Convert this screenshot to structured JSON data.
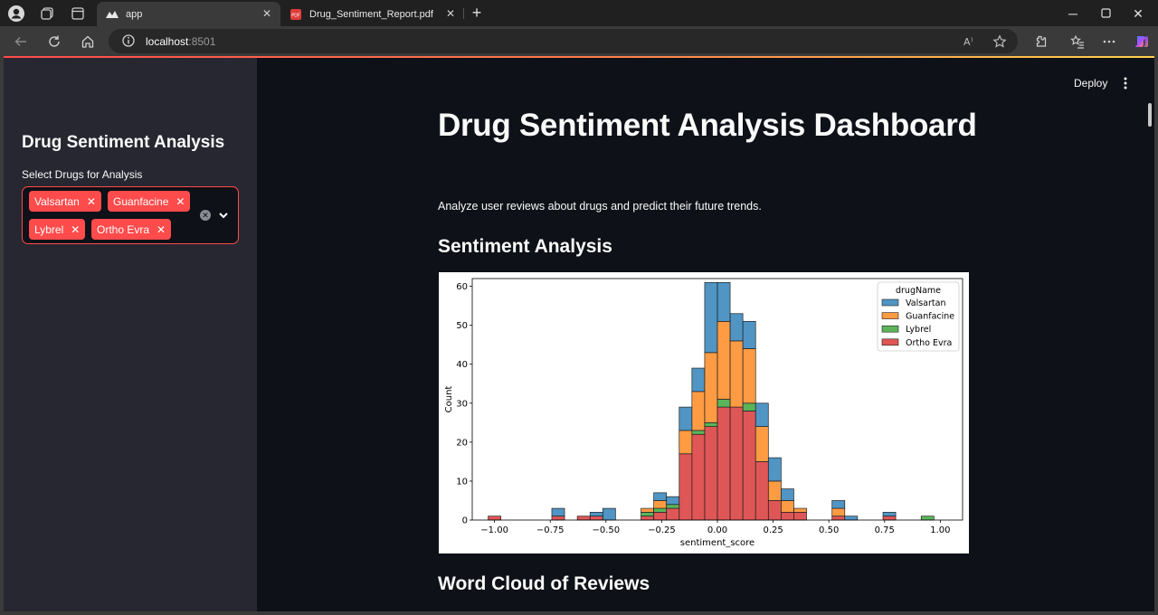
{
  "browser": {
    "tabs": [
      {
        "title": "app",
        "active": true
      },
      {
        "title": "Drug_Sentiment_Report.pdf",
        "active": false
      }
    ],
    "url_host": "localhost",
    "url_port": ":8501"
  },
  "header": {
    "deploy_label": "Deploy"
  },
  "sidebar": {
    "title": "Drug Sentiment Analysis",
    "select_label": "Select Drugs for Analysis",
    "selected": [
      "Valsartan",
      "Guanfacine",
      "Lybrel",
      "Ortho Evra"
    ]
  },
  "main": {
    "title": "Drug Sentiment Analysis Dashboard",
    "description": "Analyze user reviews about drugs and predict their future trends.",
    "section_sentiment": "Sentiment Analysis",
    "section_wordcloud": "Word Cloud of Reviews"
  },
  "colors": {
    "accent": "#ff4b4b",
    "Valsartan": "#1f77b4",
    "Guanfacine": "#ff7f0e",
    "Lybrel": "#2ca02c",
    "Ortho Evra": "#d62728"
  },
  "chart_data": {
    "type": "bar",
    "stacked": true,
    "xlabel": "sentiment_score",
    "ylabel": "Count",
    "legend_title": "drugName",
    "legend_position": "top-right",
    "xlim": [
      -1.1,
      1.1
    ],
    "ylim": [
      0,
      62
    ],
    "xticks": [
      "-1.00",
      "-0.75",
      "-0.50",
      "-0.25",
      "0.00",
      "0.25",
      "0.50",
      "0.75",
      "1.00"
    ],
    "yticks": [
      0,
      10,
      20,
      30,
      40,
      50,
      60
    ],
    "bin_width": 0.0571,
    "bin_starts": [
      -1.0286,
      -0.9714,
      -0.9143,
      -0.8571,
      -0.8,
      -0.7429,
      -0.6857,
      -0.6286,
      -0.5714,
      -0.5143,
      -0.4571,
      -0.4,
      -0.3429,
      -0.2857,
      -0.2286,
      -0.1714,
      -0.1143,
      -0.0571,
      0.0,
      0.0571,
      0.1143,
      0.1714,
      0.2286,
      0.2857,
      0.3429,
      0.4,
      0.4571,
      0.5143,
      0.5714,
      0.6286,
      0.6857,
      0.7429,
      0.8,
      0.8571,
      0.9143,
      0.9714
    ],
    "series": [
      {
        "name": "Ortho Evra",
        "values": [
          1,
          0,
          0,
          0,
          0,
          1,
          0,
          1,
          1,
          0,
          0,
          0,
          1,
          2,
          3,
          17,
          22,
          24,
          29,
          29,
          28,
          15,
          5,
          2,
          2,
          0,
          0,
          1,
          0,
          0,
          0,
          1,
          0,
          0,
          0,
          0
        ]
      },
      {
        "name": "Lybrel",
        "values": [
          0,
          0,
          0,
          0,
          0,
          0,
          0,
          0,
          0,
          0,
          0,
          0,
          1,
          1,
          1,
          0,
          1,
          1,
          2,
          0,
          2,
          0,
          0,
          0,
          0,
          0,
          0,
          0,
          0,
          0,
          0,
          0,
          0,
          0,
          1,
          0
        ]
      },
      {
        "name": "Guanfacine",
        "values": [
          0,
          0,
          0,
          0,
          0,
          0,
          0,
          0,
          0,
          0,
          0,
          0,
          1,
          2,
          0,
          6,
          10,
          18,
          20,
          17,
          14,
          9,
          5,
          3,
          1,
          0,
          0,
          2,
          0,
          0,
          0,
          0,
          0,
          0,
          0,
          0
        ]
      },
      {
        "name": "Valsartan",
        "values": [
          0,
          0,
          0,
          0,
          0,
          2,
          0,
          0,
          1,
          3,
          0,
          0,
          0,
          2,
          2,
          6,
          6,
          18,
          10,
          7,
          7,
          6,
          6,
          3,
          0,
          0,
          0,
          2,
          1,
          0,
          0,
          1,
          0,
          0,
          0,
          0
        ]
      }
    ],
    "legend_order": [
      "Valsartan",
      "Guanfacine",
      "Lybrel",
      "Ortho Evra"
    ]
  }
}
